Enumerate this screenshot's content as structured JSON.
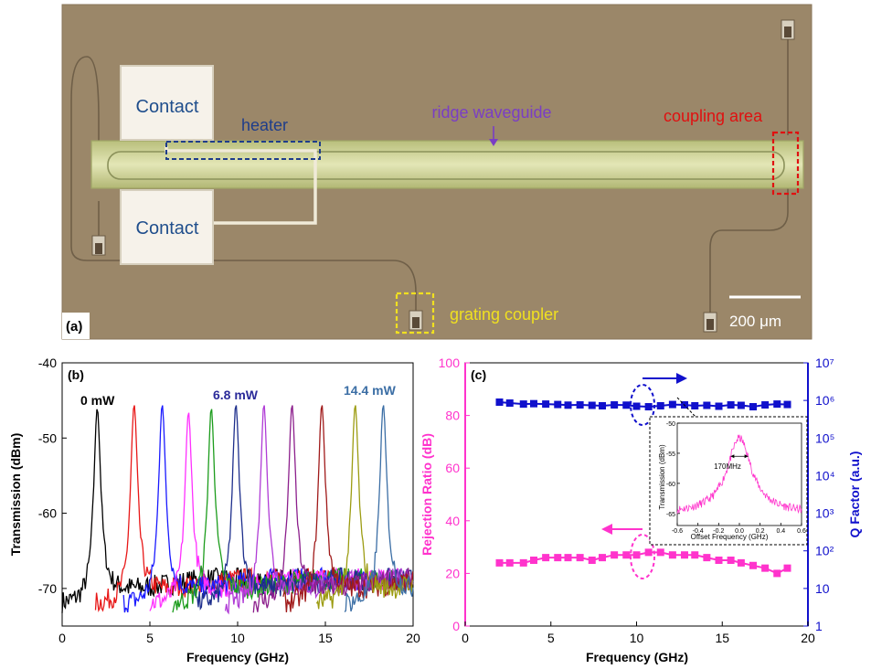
{
  "panel_a": {
    "label": "(a)",
    "contact_top": "Contact",
    "contact_bottom": "Contact",
    "heater": "heater",
    "ridge_waveguide": "ridge waveguide",
    "coupling_area": "coupling area",
    "grating_coupler": "grating coupler",
    "scale_bar": "200 μm",
    "colors": {
      "background": "#9b8769",
      "waveguide": "#d2d79f",
      "contact": "#f6f2ea",
      "heater_box": "#1f3d8a",
      "coupling_box": "#e01010",
      "grating_box": "#f0e020",
      "ridge_label": "#7a3ec4"
    }
  },
  "chart_data": [
    {
      "type": "line",
      "panel_label": "(b)",
      "xlabel": "Frequency (GHz)",
      "ylabel": "Transmission (dBm)",
      "xlim": [
        0,
        20
      ],
      "ylim": [
        -75,
        -40
      ],
      "xticks": [
        "0",
        "5",
        "10",
        "15",
        "20"
      ],
      "yticks": [
        "-40",
        "-50",
        "-60",
        "-70"
      ],
      "annotations": [
        {
          "text": "0 mW",
          "color": "#000000"
        },
        {
          "text": "6.8 mW",
          "color": "#2b2b9a"
        },
        {
          "text": "14.4 mW",
          "color": "#3b6ea5"
        }
      ],
      "peak_width_ghz": 0.5,
      "baseline_dbm": -71,
      "series": [
        {
          "peak_x": 2.0,
          "peak_y": -46.0,
          "color": "#000000"
        },
        {
          "peak_x": 4.1,
          "peak_y": -45.5,
          "color": "#e81818"
        },
        {
          "peak_x": 5.7,
          "peak_y": -45.5,
          "color": "#1a1aff"
        },
        {
          "peak_x": 7.2,
          "peak_y": -46.5,
          "color": "#ff30ff"
        },
        {
          "peak_x": 8.5,
          "peak_y": -46.0,
          "color": "#1c9c1c"
        },
        {
          "peak_x": 9.9,
          "peak_y": -45.5,
          "color": "#1e2f8c"
        },
        {
          "peak_x": 11.5,
          "peak_y": -45.5,
          "color": "#b03cd6"
        },
        {
          "peak_x": 13.1,
          "peak_y": -45.5,
          "color": "#8c1f8c"
        },
        {
          "peak_x": 14.8,
          "peak_y": -45.5,
          "color": "#a01a1a"
        },
        {
          "peak_x": 16.7,
          "peak_y": -45.5,
          "color": "#9c9c12"
        },
        {
          "peak_x": 18.3,
          "peak_y": -45.5,
          "color": "#3b6ea5"
        }
      ]
    },
    {
      "type": "scatter",
      "panel_label": "(c)",
      "xlabel": "Frequency (GHz)",
      "ylabel_left": "Rejection Ratio (dB)",
      "ylabel_right": "Q Factor (a.u.)",
      "xlim": [
        0,
        20
      ],
      "ylim_left": [
        0,
        100
      ],
      "yscale_right": "log",
      "ylim_right": [
        1,
        10000000
      ],
      "xticks": [
        "0",
        "5",
        "10",
        "15",
        "20"
      ],
      "yticks_left": [
        "0",
        "20",
        "40",
        "60",
        "80",
        "100"
      ],
      "yticks_right": [
        "1",
        "10",
        "10²",
        "10³",
        "10⁴",
        "10⁵",
        "10⁶",
        "10⁷"
      ],
      "left_color": "#ff33cc",
      "right_color": "#1010cc",
      "x": [
        2.0,
        2.6,
        3.4,
        4.0,
        4.7,
        5.4,
        6.0,
        6.7,
        7.4,
        8.0,
        8.7,
        9.4,
        10.0,
        10.7,
        11.4,
        12.1,
        12.8,
        13.4,
        14.1,
        14.8,
        15.5,
        16.1,
        16.8,
        17.5,
        18.2,
        18.8
      ],
      "series": [
        {
          "axis": "left",
          "name": "Rejection Ratio",
          "values": [
            24,
            24,
            24,
            25,
            26,
            26,
            26,
            26,
            25,
            26,
            27,
            27,
            27,
            28,
            28,
            27,
            27,
            27,
            26,
            25,
            25,
            24,
            23,
            22,
            20,
            22
          ]
        },
        {
          "axis": "right",
          "name": "Q Factor",
          "values": [
            900000,
            850000,
            800000,
            820000,
            800000,
            780000,
            750000,
            760000,
            740000,
            720000,
            760000,
            750000,
            700000,
            680000,
            720000,
            780000,
            760000,
            720000,
            740000,
            700000,
            760000,
            740000,
            680000,
            760000,
            800000,
            780000
          ]
        }
      ],
      "inset": {
        "xlabel": "Offset Frequency (GHz)",
        "ylabel": "Transmission (dBm)",
        "xlim": [
          -0.6,
          0.6
        ],
        "ylim": [
          -67,
          -50
        ],
        "xticks": [
          "-0.6",
          "-0.4",
          "-0.2",
          "0.0",
          "0.2",
          "0.4",
          "0.6"
        ],
        "yticks": [
          "-50",
          "-55",
          "-60",
          "-65"
        ],
        "annotation": "170MHz",
        "fwhm_ghz": 0.17,
        "peak_dbm": -52.5,
        "floor_dbm": -65
      }
    }
  ]
}
